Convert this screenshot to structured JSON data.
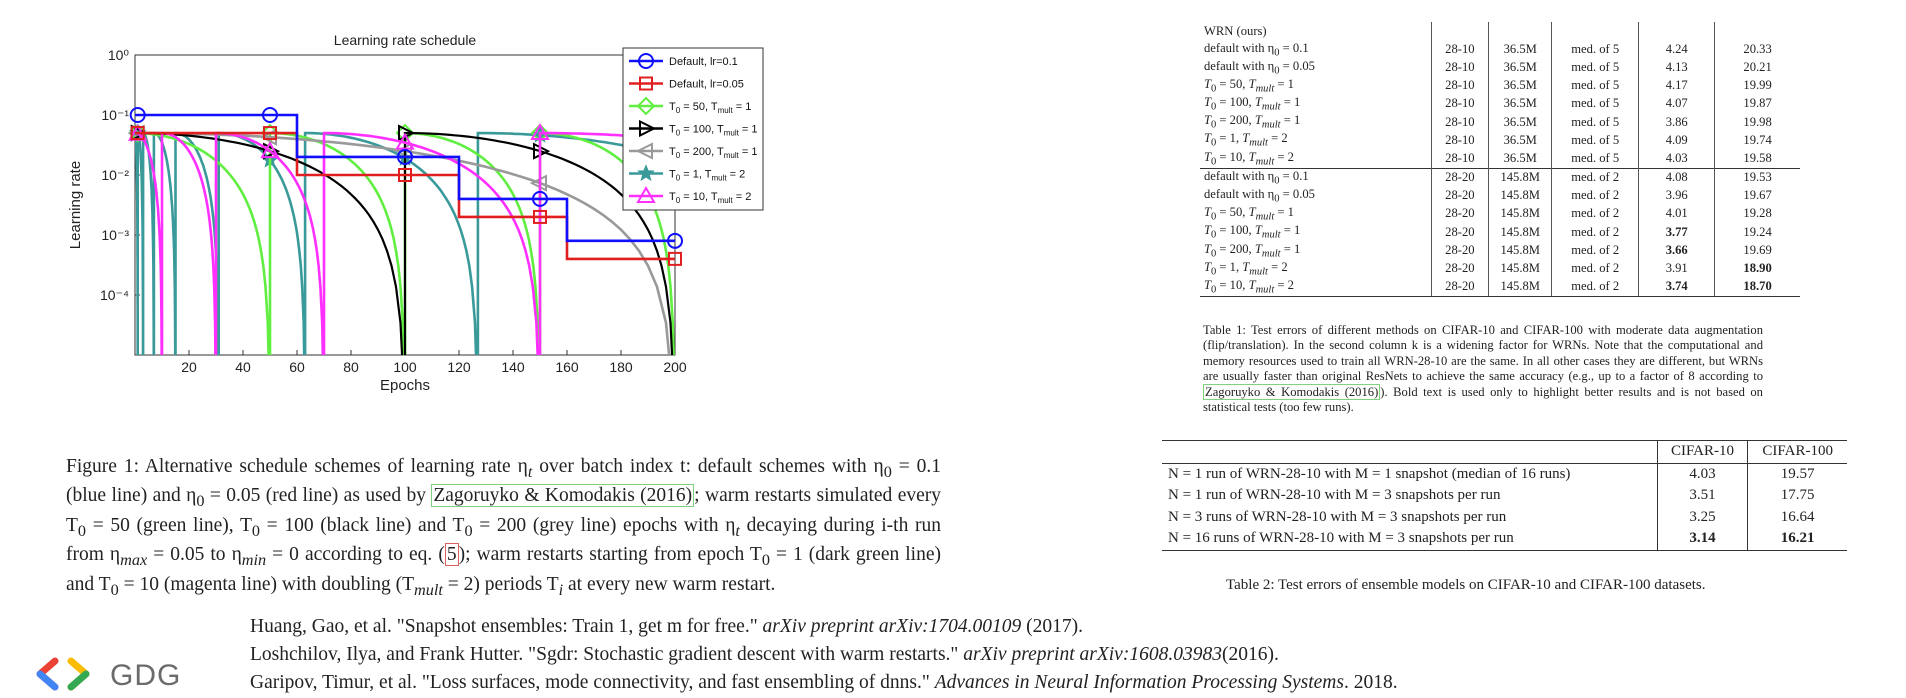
{
  "figure": {
    "chart_data": {
      "type": "line",
      "title": "Learning rate schedule",
      "xlabel": "Epochs",
      "ylabel": "Learning rate",
      "xlim": [
        0,
        200
      ],
      "ylim": [
        1e-05,
        1
      ],
      "yscale": "log",
      "x_ticks": [
        "20",
        "40",
        "60",
        "80",
        "100",
        "120",
        "140",
        "160",
        "180",
        "200"
      ],
      "y_ticks": [
        "10⁰",
        "10⁻¹",
        "10⁻²",
        "10⁻³",
        "10⁻⁴"
      ],
      "legend_position": "top-right",
      "series": [
        {
          "name": "Default, lr=0.1",
          "color": "#1010ff",
          "marker": "circle",
          "points": [
            [
              0,
              0.1
            ],
            [
              60,
              0.1
            ],
            [
              60,
              0.02
            ],
            [
              120,
              0.02
            ],
            [
              120,
              0.004
            ],
            [
              160,
              0.004
            ],
            [
              160,
              0.0008
            ],
            [
              200,
              0.0008
            ]
          ]
        },
        {
          "name": "Default, lr=0.05",
          "color": "#e02020",
          "marker": "square",
          "points": [
            [
              0,
              0.05
            ],
            [
              60,
              0.05
            ],
            [
              60,
              0.01
            ],
            [
              120,
              0.01
            ],
            [
              120,
              0.002
            ],
            [
              160,
              0.002
            ],
            [
              160,
              0.0004
            ],
            [
              200,
              0.0004
            ]
          ]
        },
        {
          "name": "T0 = 50, Tmult = 1",
          "color": "#60ee40",
          "marker": "diamond",
          "restarts": [
            0,
            50,
            100,
            150
          ],
          "period": 50,
          "lr_max": 0.05
        },
        {
          "name": "T0 = 100, Tmult = 1",
          "color": "#000000",
          "marker": "triangle-right",
          "restarts": [
            0,
            100
          ],
          "period": 100,
          "lr_max": 0.05
        },
        {
          "name": "T0 = 200, Tmult = 1",
          "color": "#999999",
          "marker": "triangle-left",
          "restarts": [
            0
          ],
          "period": 200,
          "lr_max": 0.05
        },
        {
          "name": "T0 = 1, Tmult = 2",
          "color": "#3a9a9a",
          "marker": "star",
          "restarts": [
            0,
            1,
            3,
            7,
            15,
            31,
            63,
            127
          ],
          "periods": [
            1,
            2,
            4,
            8,
            16,
            32,
            64,
            128
          ],
          "lr_max": 0.05
        },
        {
          "name": "T0 = 10, Tmult = 2",
          "color": "#ff30ff",
          "marker": "triangle-up",
          "restarts": [
            0,
            10,
            30,
            70,
            150
          ],
          "periods": [
            10,
            20,
            40,
            80,
            160
          ],
          "lr_max": 0.05
        }
      ]
    },
    "legend_labels": [
      {
        "main": "Default, lr=0.1",
        "sub": ""
      },
      {
        "main": "Default, lr=0.05",
        "sub": ""
      },
      {
        "main": "T",
        "sub0": "0",
        "rest": " = 50, T",
        "sub": "mult",
        "tail": " = 1"
      },
      {
        "main": "T",
        "sub0": "0",
        "rest": " = 100, T",
        "sub": "mult",
        "tail": " = 1"
      },
      {
        "main": "T",
        "sub0": "0",
        "rest": " = 200, T",
        "sub": "mult",
        "tail": " = 1"
      },
      {
        "main": "T",
        "sub0": "0",
        "rest": " = 1, T",
        "sub": "mult",
        "tail": " = 2"
      },
      {
        "main": "T",
        "sub0": "0",
        "rest": " = 10, T",
        "sub": "mult",
        "tail": " = 2"
      }
    ],
    "caption": {
      "prefix": "Figure 1:   Alternative schedule schemes of learning rate η",
      "p1": " over batch index t:  default schemes with η",
      "p2": " = 0.1 (blue line) and η",
      "p3": " = 0.05 (red line) as used by ",
      "link": "Zagoruyko & Komodakis (2016)",
      "p4": "; warm restarts simulated every T",
      "p5": " = 50 (green line), T",
      "p6": " = 100 (black line) and T",
      "p7": " = 200 (grey line) epochs with η",
      "p8": " decaying during i-th run from η",
      "p9": " = 0.05 to η",
      "p10": " = 0 according to eq. (",
      "eq": "5",
      "p11": "); warm restarts starting from epoch T",
      "p12": " = 1 (dark green line) and T",
      "p13": " = 10 (magenta line) with doubling (T",
      "p14": " = 2) periods T",
      "p15": " at every new warm restart."
    }
  },
  "table1": {
    "rows_a": [
      [
        "WRN (ours)",
        "",
        "",
        "",
        "",
        ""
      ],
      [
        "default with η0 = 0.1",
        "28-10",
        "36.5M",
        "med. of 5",
        "4.24",
        "20.33"
      ],
      [
        "default with η0 = 0.05",
        "28-10",
        "36.5M",
        "med. of 5",
        "4.13",
        "20.21"
      ],
      [
        "T0 = 50, Tmult = 1",
        "28-10",
        "36.5M",
        "med. of 5",
        "4.17",
        "19.99"
      ],
      [
        "T0 = 100, Tmult = 1",
        "28-10",
        "36.5M",
        "med. of 5",
        "4.07",
        "19.87"
      ],
      [
        "T0 = 200, Tmult = 1",
        "28-10",
        "36.5M",
        "med. of 5",
        "3.86",
        "19.98"
      ],
      [
        "T0 = 1, Tmult = 2",
        "28-10",
        "36.5M",
        "med. of 5",
        "4.09",
        "19.74"
      ],
      [
        "T0 = 10, Tmult = 2",
        "28-10",
        "36.5M",
        "med. of 5",
        "4.03",
        "19.58"
      ]
    ],
    "rows_b": [
      [
        "default with η0 = 0.1",
        "28-20",
        "145.8M",
        "med. of 2",
        "4.08",
        "19.53"
      ],
      [
        "default with η0 = 0.05",
        "28-20",
        "145.8M",
        "med. of 2",
        "3.96",
        "19.67"
      ],
      [
        "T0 = 50, Tmult = 1",
        "28-20",
        "145.8M",
        "med. of 2",
        "4.01",
        "19.28"
      ],
      [
        "T0 = 100, Tmult = 1",
        "28-20",
        "145.8M",
        "med. of 2",
        "3.77",
        "19.24"
      ],
      [
        "T0 = 200, Tmult = 1",
        "28-20",
        "145.8M",
        "med. of 2",
        "3.66",
        "19.69"
      ],
      [
        "T0 = 1, Tmult = 2",
        "28-20",
        "145.8M",
        "med. of 2",
        "3.91",
        "18.90"
      ],
      [
        "T0 = 10, Tmult = 2",
        "28-20",
        "145.8M",
        "med. of 2",
        "3.74",
        "18.70"
      ]
    ],
    "caption_a": "Table 1: Test errors of different methods on CIFAR-10 and CIFAR-100 with moderate data augmentation (flip/translation). In the second column k is a widening factor for WRNs. Note that the computational and memory resources used to train all WRN-28-10 are the same. In all other cases they are different, but WRNs are usually faster than original ResNets to achieve the same accuracy (e.g., up to a factor of 8 according to ",
    "caption_link": "Zagoruyko & Komodakis (2016)",
    "caption_b": "). Bold text is used only to highlight better results and is not based on statistical tests (too few runs)."
  },
  "table2": {
    "headers": [
      "CIFAR-10",
      "CIFAR-100"
    ],
    "rows": [
      [
        "N = 1 run of WRN-28-10 with M = 1 snapshot (median of 16 runs)",
        "4.03",
        "19.57"
      ],
      [
        "N = 1 run of WRN-28-10 with M = 3 snapshots per run",
        "3.51",
        "17.75"
      ],
      [
        "N = 3 runs of WRN-28-10 with M = 3 snapshots per run",
        "3.25",
        "16.64"
      ],
      [
        "N = 16 runs of WRN-28-10 with M = 3 snapshots per run",
        "3.14",
        "16.21"
      ]
    ],
    "caption": "Table 2: Test errors of ensemble models on CIFAR-10 and CIFAR-100 datasets."
  },
  "references": [
    {
      "a": "Huang, Gao, et al. \"Snapshot ensembles: Train 1, get m for free.\" ",
      "i": "arXiv preprint arXiv:1704.00109",
      "b": " (2017)."
    },
    {
      "a": "Loshchilov, Ilya, and Frank Hutter. \"Sgdr: Stochastic gradient descent with warm restarts.\" ",
      "i": "arXiv preprint arXiv:1608.03983",
      "b": "(2016)."
    },
    {
      "a": "Garipov, Timur, et al. \"Loss surfaces, mode connectivity, and fast ensembling of dnns.\" ",
      "i": "Advances in Neural Information Processing Systems",
      "b": ". 2018."
    }
  ],
  "logo": {
    "text": "GDG"
  }
}
